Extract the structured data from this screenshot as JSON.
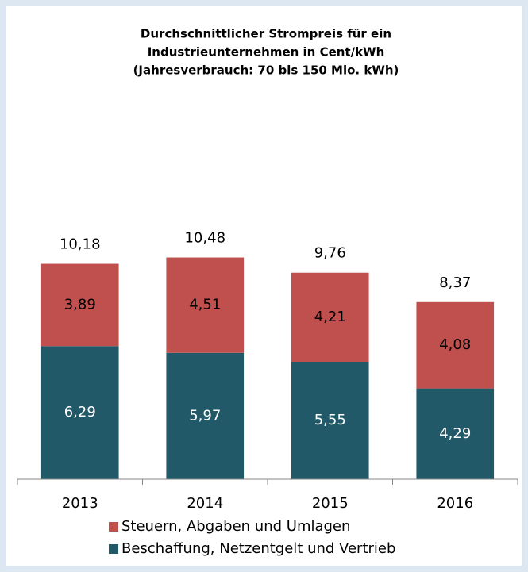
{
  "chart_data": {
    "type": "stacked_bar",
    "title": [
      "Durchschnittlicher Strompreis für ein",
      "Industrieunternehmen in Cent/kWh",
      "(Jahresverbrauch: 70 bis 150 Mio. kWh)"
    ],
    "categories": [
      "2013",
      "2014",
      "2015",
      "2016"
    ],
    "series": [
      {
        "name": "Beschaffung, Netzentgelt und Vertrieb",
        "color": "#215968",
        "values": [
          6.29,
          5.97,
          5.55,
          4.29
        ],
        "value_labels": [
          "6,29",
          "5,97",
          "5,55",
          "4,29"
        ]
      },
      {
        "name": "Steuern, Abgaben und Umlagen",
        "color": "#c0504d",
        "values": [
          3.89,
          4.51,
          4.21,
          4.08
        ],
        "value_labels": [
          "3,89",
          "4,51",
          "4,21",
          "4,08"
        ]
      }
    ],
    "totals": [
      10.18,
      10.48,
      9.76,
      8.37
    ],
    "total_labels": [
      "10,18",
      "10,48",
      "9,76",
      "8,37"
    ],
    "ylim": [
      0,
      12
    ]
  }
}
